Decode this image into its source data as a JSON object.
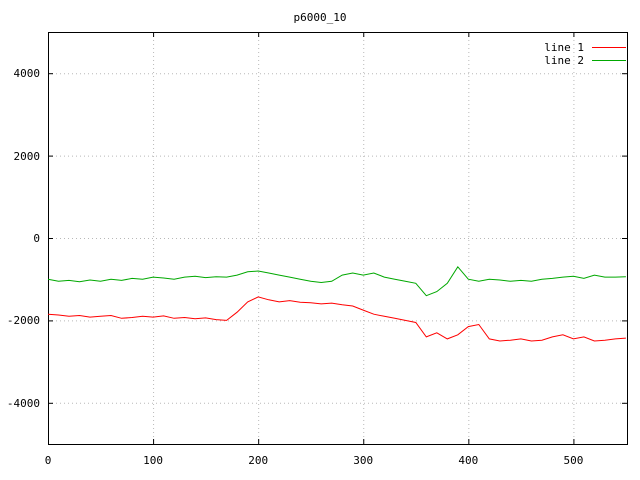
{
  "chart_data": {
    "type": "line",
    "title": "p6000_10",
    "xlabel": "",
    "ylabel": "",
    "xlim": [
      0,
      551
    ],
    "ylim": [
      -5000,
      5000
    ],
    "xticks": [
      0,
      100,
      200,
      300,
      400,
      500
    ],
    "yticks": [
      -4000,
      -2000,
      0,
      2000,
      4000
    ],
    "grid": true,
    "legend_position": "top-right-inside",
    "background": "#ffffff",
    "border_color": "#000000",
    "grid_color": "#b8b8b8",
    "x": [
      0,
      10,
      20,
      30,
      40,
      50,
      60,
      70,
      80,
      90,
      100,
      110,
      120,
      130,
      140,
      150,
      160,
      170,
      180,
      190,
      200,
      210,
      220,
      230,
      240,
      250,
      260,
      270,
      280,
      290,
      300,
      310,
      320,
      330,
      340,
      350,
      360,
      370,
      380,
      390,
      400,
      410,
      420,
      430,
      440,
      450,
      460,
      470,
      480,
      490,
      500,
      510,
      520,
      530,
      540,
      550
    ],
    "series": [
      {
        "name": "line 1",
        "color": "#ff0000",
        "values": [
          -1850,
          -1870,
          -1900,
          -1880,
          -1920,
          -1900,
          -1880,
          -1950,
          -1930,
          -1900,
          -1920,
          -1890,
          -1950,
          -1930,
          -1960,
          -1940,
          -1980,
          -2000,
          -1800,
          -1550,
          -1430,
          -1500,
          -1550,
          -1520,
          -1560,
          -1570,
          -1600,
          -1580,
          -1620,
          -1650,
          -1750,
          -1850,
          -1900,
          -1950,
          -2000,
          -2050,
          -2400,
          -2300,
          -2450,
          -2350,
          -2150,
          -2100,
          -2450,
          -2500,
          -2480,
          -2450,
          -2500,
          -2480,
          -2400,
          -2350,
          -2450,
          -2400,
          -2500,
          -2480,
          -2450,
          -2430
        ]
      },
      {
        "name": "line 2",
        "color": "#00a800",
        "values": [
          -1000,
          -1050,
          -1030,
          -1060,
          -1020,
          -1050,
          -1000,
          -1030,
          -980,
          -1000,
          -950,
          -970,
          -1000,
          -950,
          -930,
          -960,
          -940,
          -950,
          -900,
          -820,
          -800,
          -850,
          -900,
          -950,
          -1000,
          -1050,
          -1080,
          -1050,
          -900,
          -850,
          -900,
          -850,
          -950,
          -1000,
          -1050,
          -1100,
          -1400,
          -1300,
          -1100,
          -700,
          -1000,
          -1050,
          -1000,
          -1020,
          -1050,
          -1030,
          -1050,
          -1000,
          -980,
          -950,
          -930,
          -980,
          -900,
          -950,
          -950,
          -940
        ]
      }
    ]
  }
}
